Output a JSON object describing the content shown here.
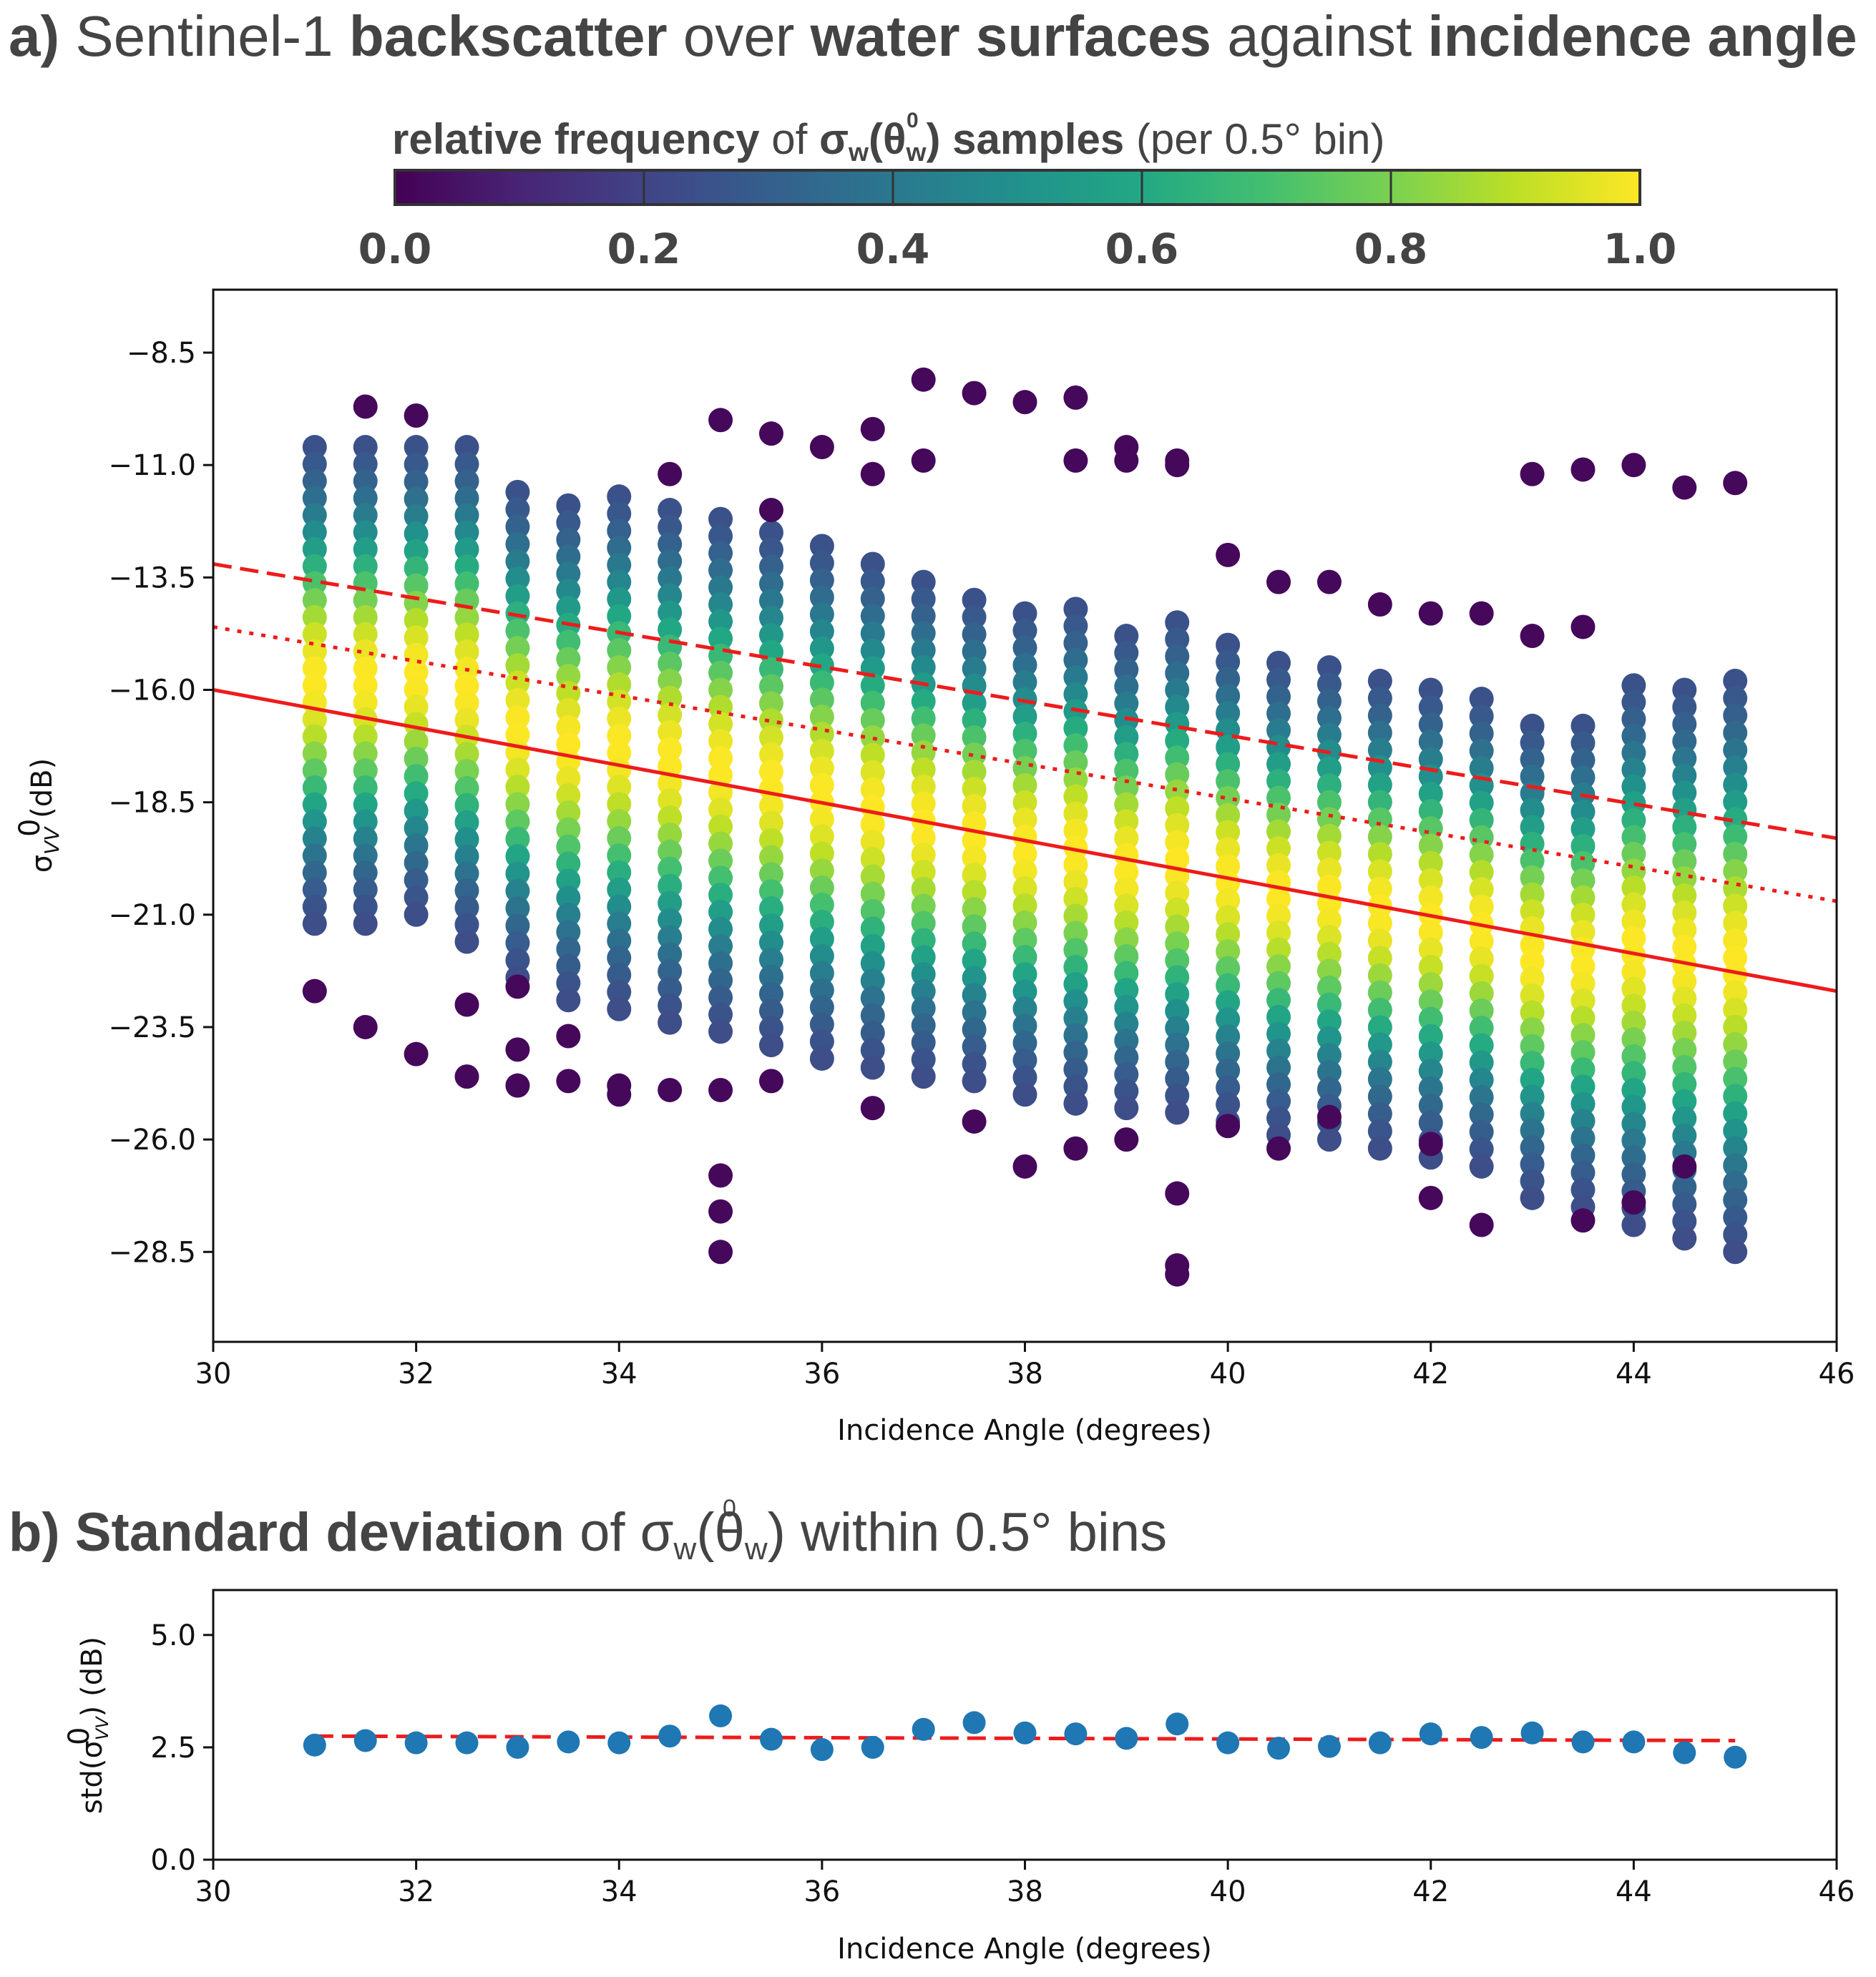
{
  "chart_data": [
    {
      "type": "scatter",
      "panel_label": "a)",
      "title_parts": [
        {
          "text": "Sentinel-1 ",
          "bold": false
        },
        {
          "text": "backscatter",
          "bold": true
        },
        {
          "text": " over ",
          "bold": false
        },
        {
          "text": "water surfaces",
          "bold": true
        },
        {
          "text": " against ",
          "bold": false
        },
        {
          "text": "incidence angle",
          "bold": true
        }
      ],
      "colorbar": {
        "label_bold": "relative frequency",
        "label_mid": " of ",
        "label_symbol": "σ",
        "label_symbol_sup": "0",
        "label_symbol_sub": "w",
        "label_arg": "(θ",
        "label_arg_sub": "w",
        "label_arg_close": ")",
        "label_bold2": " samples",
        "label_tail": " (per 0.5° bin)",
        "colormap": "viridis",
        "range": [
          0.0,
          1.0
        ],
        "ticks": [
          "0.0",
          "0.2",
          "0.4",
          "0.6",
          "0.8",
          "1.0"
        ]
      },
      "xlabel": "Incidence Angle (degrees)",
      "ylabel_symbol": "σ",
      "ylabel_sup": "0",
      "ylabel_sub": "VV",
      "ylabel_tail": " (dB)",
      "xlim": [
        30,
        46
      ],
      "ylim": [
        -30.5,
        -7.1
      ],
      "xticks": [
        "30",
        "32",
        "34",
        "36",
        "38",
        "40",
        "42",
        "44",
        "46"
      ],
      "yticks": [
        "−8.5",
        "−11.0",
        "−13.5",
        "−16.0",
        "−18.5",
        "−21.0",
        "−23.5",
        "−26.0",
        "−28.5"
      ],
      "ytick_values": [
        -8.5,
        -11.0,
        -13.5,
        -16.0,
        -18.5,
        -21.0,
        -23.5,
        -26.0,
        -28.5
      ],
      "bins_x": [
        31,
        31.5,
        32,
        32.5,
        33,
        33.5,
        34,
        34.5,
        35,
        35.5,
        36,
        36.5,
        37,
        37.5,
        38,
        38.5,
        39,
        39.5,
        40,
        40.5,
        41,
        41.5,
        42,
        42.5,
        43,
        43.5,
        44,
        44.5,
        45
      ],
      "bin_core_range": [
        [
          -10.6,
          -21.2
        ],
        [
          -10.6,
          -21.2
        ],
        [
          -10.6,
          -21.0
        ],
        [
          -10.6,
          -21.6
        ],
        [
          -11.6,
          -22.4
        ],
        [
          -11.9,
          -22.9
        ],
        [
          -11.7,
          -23.1
        ],
        [
          -12.0,
          -23.4
        ],
        [
          -12.2,
          -23.6
        ],
        [
          -12.5,
          -23.9
        ],
        [
          -12.8,
          -24.2
        ],
        [
          -13.2,
          -24.4
        ],
        [
          -13.6,
          -24.6
        ],
        [
          -14.0,
          -24.7
        ],
        [
          -14.3,
          -25.0
        ],
        [
          -14.2,
          -25.2
        ],
        [
          -14.8,
          -25.3
        ],
        [
          -14.5,
          -25.4
        ],
        [
          -15.0,
          -25.6
        ],
        [
          -15.4,
          -25.9
        ],
        [
          -15.5,
          -26.0
        ],
        [
          -15.8,
          -26.2
        ],
        [
          -16.0,
          -26.4
        ],
        [
          -16.2,
          -26.6
        ],
        [
          -16.8,
          -27.3
        ],
        [
          -16.8,
          -27.5
        ],
        [
          -15.9,
          -27.9
        ],
        [
          -16.0,
          -28.2
        ],
        [
          -15.8,
          -28.5
        ]
      ],
      "outliers": [
        [
          31,
          -22.7
        ],
        [
          31.5,
          -9.7
        ],
        [
          31.5,
          -23.5
        ],
        [
          32,
          -9.9
        ],
        [
          32,
          -24.1
        ],
        [
          32.5,
          -24.6
        ],
        [
          32.5,
          -23.0
        ],
        [
          33,
          -24.8
        ],
        [
          33,
          -24.0
        ],
        [
          33,
          -22.6
        ],
        [
          33.5,
          -24.7
        ],
        [
          33.5,
          -23.7
        ],
        [
          34,
          -24.8
        ],
        [
          34,
          -25.0
        ],
        [
          34.5,
          -11.2
        ],
        [
          34.5,
          -24.9
        ],
        [
          35,
          -10.0
        ],
        [
          35,
          -28.5
        ],
        [
          35,
          -27.6
        ],
        [
          35,
          -26.8
        ],
        [
          35,
          -24.9
        ],
        [
          35.5,
          -10.3
        ],
        [
          35.5,
          -12.0
        ],
        [
          35.5,
          -24.7
        ],
        [
          36,
          -10.6
        ],
        [
          36.5,
          -10.2
        ],
        [
          36.5,
          -11.2
        ],
        [
          36.5,
          -25.3
        ],
        [
          37,
          -9.1
        ],
        [
          37,
          -10.9
        ],
        [
          37.5,
          -9.4
        ],
        [
          37.5,
          -25.6
        ],
        [
          38,
          -9.6
        ],
        [
          38,
          -26.6
        ],
        [
          38.5,
          -9.5
        ],
        [
          38.5,
          -10.9
        ],
        [
          38.5,
          -26.2
        ],
        [
          39,
          -10.6
        ],
        [
          39,
          -10.9
        ],
        [
          39,
          -26.0
        ],
        [
          39.5,
          -10.9
        ],
        [
          39.5,
          -11.0
        ],
        [
          39.5,
          -27.2
        ],
        [
          39.5,
          -28.8
        ],
        [
          39.5,
          -29.0
        ],
        [
          40,
          -13.0
        ],
        [
          40,
          -25.7
        ],
        [
          40.5,
          -13.6
        ],
        [
          40.5,
          -26.2
        ],
        [
          41,
          -13.6
        ],
        [
          41,
          -25.5
        ],
        [
          41.5,
          -14.1
        ],
        [
          42,
          -14.3
        ],
        [
          42,
          -26.1
        ],
        [
          42,
          -27.3
        ],
        [
          42.5,
          -14.3
        ],
        [
          42.5,
          -27.9
        ],
        [
          43,
          -11.2
        ],
        [
          43,
          -14.8
        ],
        [
          43.5,
          -11.1
        ],
        [
          43.5,
          -14.6
        ],
        [
          43.5,
          -27.8
        ],
        [
          44,
          -11.0
        ],
        [
          44,
          -27.4
        ],
        [
          44.5,
          -11.5
        ],
        [
          44.5,
          -26.6
        ],
        [
          45,
          -11.4
        ]
      ],
      "lines": [
        {
          "name": "upper",
          "style": "dashed",
          "color": "#ee1b1b",
          "x": [
            30,
            46
          ],
          "y": [
            -13.2,
            -19.3
          ]
        },
        {
          "name": "middle",
          "style": "dotted",
          "color": "#ee1b1b",
          "x": [
            30,
            46
          ],
          "y": [
            -14.6,
            -20.7
          ]
        },
        {
          "name": "fit",
          "style": "solid",
          "color": "#ee1b1b",
          "x": [
            30,
            46
          ],
          "y": [
            -16.0,
            -22.7
          ]
        }
      ]
    },
    {
      "type": "scatter",
      "panel_label": "b)",
      "title_bold": "Standard deviation",
      "title_mid": " of ",
      "title_symbol": "σ",
      "title_symbol_sup": "0",
      "title_symbol_sub": "w",
      "title_arg": "(θ",
      "title_arg_sub": "w",
      "title_arg_close": ")",
      "title_tail": " within 0.5° bins",
      "xlabel": "Incidence Angle (degrees)",
      "ylabel_prefix": "std(",
      "ylabel_symbol": "σ",
      "ylabel_sup": "0",
      "ylabel_sub": "VV",
      "ylabel_tail": ") (dB)",
      "xlim": [
        30,
        46
      ],
      "ylim": [
        0,
        6
      ],
      "xticks": [
        "30",
        "32",
        "34",
        "36",
        "38",
        "40",
        "42",
        "44",
        "46"
      ],
      "yticks": [
        "0.0",
        "2.5",
        "5.0"
      ],
      "ytick_values": [
        0.0,
        2.5,
        5.0
      ],
      "point_color": "#1f77b4",
      "x": [
        31,
        31.5,
        32,
        32.5,
        33,
        33.5,
        34,
        34.5,
        35,
        35.5,
        36,
        36.5,
        37,
        37.5,
        38,
        38.5,
        39,
        39.5,
        40,
        40.5,
        41,
        41.5,
        42,
        42.5,
        43,
        43.5,
        44,
        44.5,
        45
      ],
      "y": [
        2.55,
        2.65,
        2.6,
        2.6,
        2.5,
        2.62,
        2.6,
        2.75,
        3.2,
        2.68,
        2.45,
        2.5,
        2.9,
        3.05,
        2.82,
        2.8,
        2.7,
        3.02,
        2.6,
        2.48,
        2.52,
        2.6,
        2.8,
        2.72,
        2.82,
        2.62,
        2.62,
        2.38,
        2.28
      ],
      "trend": {
        "style": "dashed",
        "color": "#ee1b1b",
        "x": [
          31,
          45
        ],
        "y": [
          2.75,
          2.65
        ]
      }
    }
  ]
}
